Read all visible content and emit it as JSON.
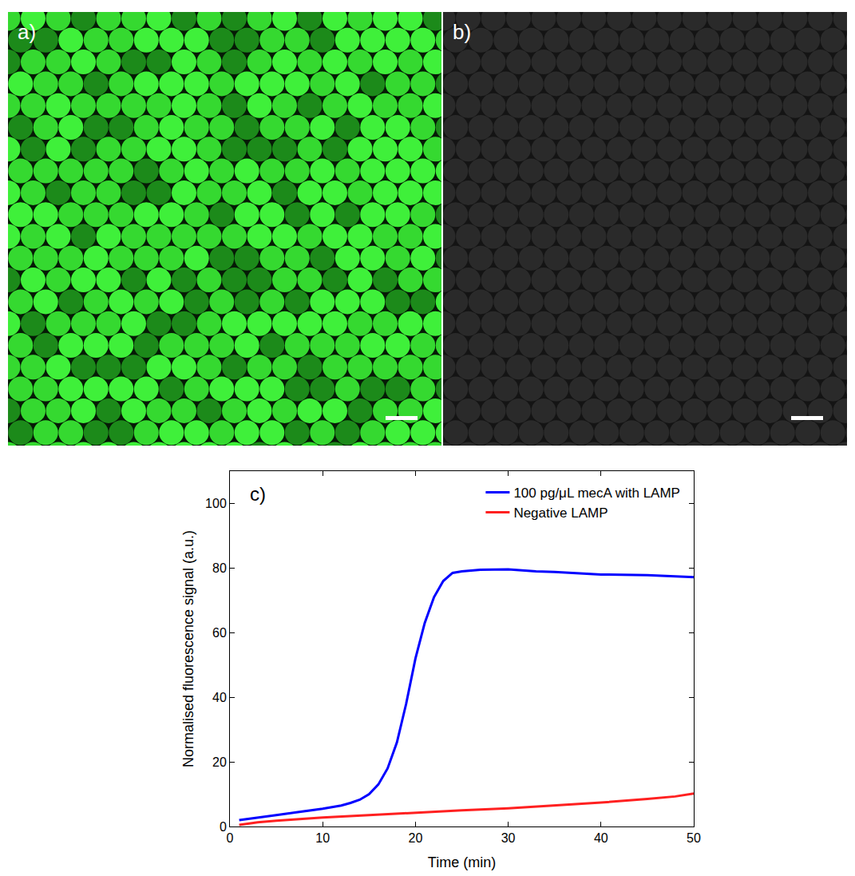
{
  "panels": [
    {
      "label": "a)",
      "style": "bright"
    },
    {
      "label": "b)",
      "style": "dark"
    }
  ],
  "chart_data": {
    "type": "line",
    "label": "c)",
    "x_label": "Time (min)",
    "y_label": "Normalised fluorescence signal (a.u.)",
    "xlim": [
      0,
      50
    ],
    "xticks": [
      0,
      10,
      20,
      30,
      40,
      50
    ],
    "ylim": [
      0,
      110
    ],
    "yticks": [
      0,
      20,
      40,
      60,
      80,
      100
    ],
    "grid": false,
    "legend": "top right",
    "series": [
      {
        "name": "100 pg/μL mecA with LAMP",
        "color": "#0000ff",
        "x": [
          1,
          3,
          5,
          7,
          10,
          12,
          13,
          14,
          15,
          16,
          17,
          18,
          19,
          20,
          21,
          22,
          23,
          24,
          25,
          27,
          30,
          33,
          35,
          40,
          45,
          50
        ],
        "values": [
          2,
          2.7,
          3.5,
          4.3,
          5.5,
          6.5,
          7.3,
          8.3,
          10,
          13,
          18,
          26,
          38,
          52,
          63,
          71,
          76,
          78.5,
          79,
          79.5,
          79.6,
          79,
          78.8,
          78,
          77.8,
          77.2
        ]
      },
      {
        "name": "Negative LAMP",
        "color": "#ff2020",
        "x": [
          1,
          3,
          5,
          10,
          15,
          20,
          25,
          30,
          35,
          40,
          45,
          48,
          50
        ],
        "values": [
          0.5,
          1.3,
          1.8,
          2.8,
          3.5,
          4.3,
          5,
          5.6,
          6.5,
          7.4,
          8.5,
          9.3,
          10.2
        ]
      }
    ]
  }
}
